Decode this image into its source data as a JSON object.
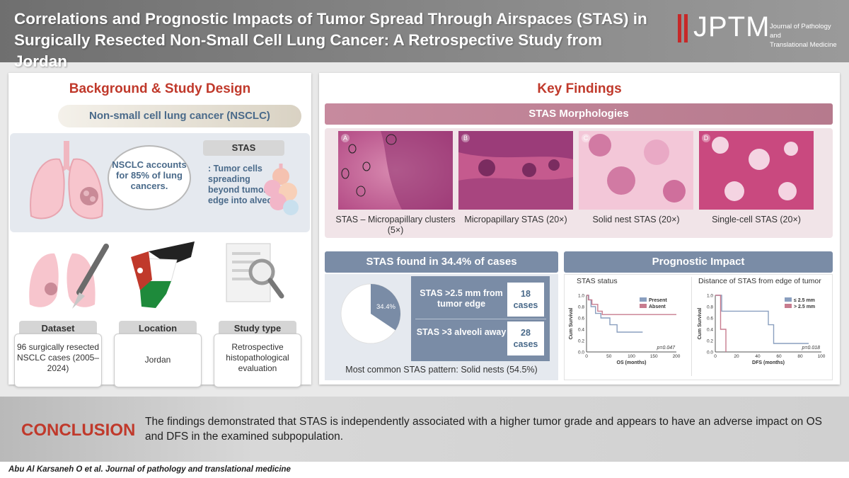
{
  "header": {
    "title_line1": "Correlations and Prognostic Impacts of Tumor Spread Through Airspaces (STAS) in",
    "title_line2": "Surgically Resected Non-Small Cell Lung Cancer: A Retrospective Study from Jordan",
    "logo_text": "JPTM",
    "journal_line1": "Journal of Pathology and",
    "journal_line2": "Translational Medicine"
  },
  "left": {
    "title": "Background & Study Design",
    "nsclc_bar": "Non-small cell lung cancer (NSCLC)",
    "bubble": "NSCLC accounts for 85% of lung cancers.",
    "stas_tag": "STAS",
    "stas_def": ": Tumor cells spreading beyond tumor edge into alveoli",
    "cards": [
      {
        "head": "Dataset",
        "text": "96 surgically resected NSCLC cases (2005–2024)"
      },
      {
        "head": "Location",
        "text": "Jordan"
      },
      {
        "head": "Study type",
        "text": "Retrospective histopathological evaluation"
      }
    ]
  },
  "right": {
    "title": "Key Findings",
    "morph_band": "STAS Morphologies",
    "micrographs": [
      {
        "letter": "A",
        "label": "STAS – Micropapillary clusters (5×)"
      },
      {
        "letter": "B",
        "label": "Micropapillary STAS (20×)"
      },
      {
        "letter": "C",
        "label": "Solid nest STAS (20×)"
      },
      {
        "letter": "D",
        "label": "Single-cell STAS (20×)"
      }
    ],
    "found_band": "STAS found in 34.4% of cases",
    "pie_label": "34.4%",
    "table": [
      {
        "desc": "STAS >2.5 mm from tumor edge",
        "val": "18 cases"
      },
      {
        "desc": "STAS >3 alveoli away",
        "val": "28 cases"
      }
    ],
    "common": "Most common STAS pattern: Solid nests (54.5%)",
    "progn_band": "Prognostic Impact"
  },
  "chart_data": [
    {
      "type": "line",
      "title": "STAS status",
      "xlabel": "OS (months)",
      "ylabel": "Cum Survival",
      "xlim": [
        0,
        200
      ],
      "ylim": [
        0,
        1.0
      ],
      "xticks": [
        0,
        50,
        100,
        150,
        200
      ],
      "yticks": [
        0.0,
        0.2,
        0.4,
        0.6,
        0.8,
        1.0
      ],
      "annotation": "p=0.047",
      "legend_position": "top-right",
      "series": [
        {
          "name": "Present",
          "color": "#8a9fbf",
          "points": [
            [
              0,
              1.0
            ],
            [
              5,
              1.0
            ],
            [
              5,
              0.92
            ],
            [
              10,
              0.92
            ],
            [
              10,
              0.8
            ],
            [
              20,
              0.8
            ],
            [
              20,
              0.68
            ],
            [
              32,
              0.68
            ],
            [
              32,
              0.6
            ],
            [
              52,
              0.6
            ],
            [
              52,
              0.48
            ],
            [
              68,
              0.48
            ],
            [
              68,
              0.35
            ],
            [
              125,
              0.35
            ]
          ]
        },
        {
          "name": "Absent",
          "color": "#c77c8f",
          "points": [
            [
              0,
              1.0
            ],
            [
              4,
              1.0
            ],
            [
              4,
              0.92
            ],
            [
              12,
              0.92
            ],
            [
              12,
              0.84
            ],
            [
              25,
              0.84
            ],
            [
              25,
              0.72
            ],
            [
              35,
              0.72
            ],
            [
              35,
              0.66
            ],
            [
              200,
              0.66
            ]
          ]
        }
      ]
    },
    {
      "type": "line",
      "title": "Distance of STAS from edge of tumor",
      "xlabel": "DFS (months)",
      "ylabel": "Cum Survival",
      "xlim": [
        0,
        100
      ],
      "ylim": [
        0,
        1.0
      ],
      "xticks": [
        0,
        20,
        40,
        60,
        80,
        100
      ],
      "yticks": [
        0.0,
        0.2,
        0.4,
        0.6,
        0.8,
        1.0
      ],
      "annotation": "p=0.018",
      "legend_position": "top-right",
      "series": [
        {
          "name": "≤ 2.5 mm",
          "color": "#8a9fbf",
          "points": [
            [
              0,
              1.0
            ],
            [
              6,
              1.0
            ],
            [
              6,
              0.72
            ],
            [
              50,
              0.72
            ],
            [
              50,
              0.48
            ],
            [
              55,
              0.48
            ],
            [
              55,
              0.15
            ],
            [
              88,
              0.15
            ]
          ]
        },
        {
          "name": "> 2.5 mm",
          "color": "#c77c8f",
          "points": [
            [
              0,
              1.0
            ],
            [
              5,
              1.0
            ],
            [
              5,
              0.4
            ],
            [
              10,
              0.4
            ],
            [
              10,
              0.0
            ]
          ]
        }
      ]
    }
  ],
  "conclusion": {
    "label": "CONCLUSION",
    "text": "The findings demonstrated that STAS is independently associated with a higher tumor grade and appears to have an adverse impact on OS and DFS in the examined subpopulation."
  },
  "citation": "Abu Al Karsaneh O et al. Journal of pathology and translational medicine",
  "colors": {
    "accent_red": "#c0392b",
    "slate_blue": "#7a8ca6",
    "rose": "#c78a9e"
  }
}
